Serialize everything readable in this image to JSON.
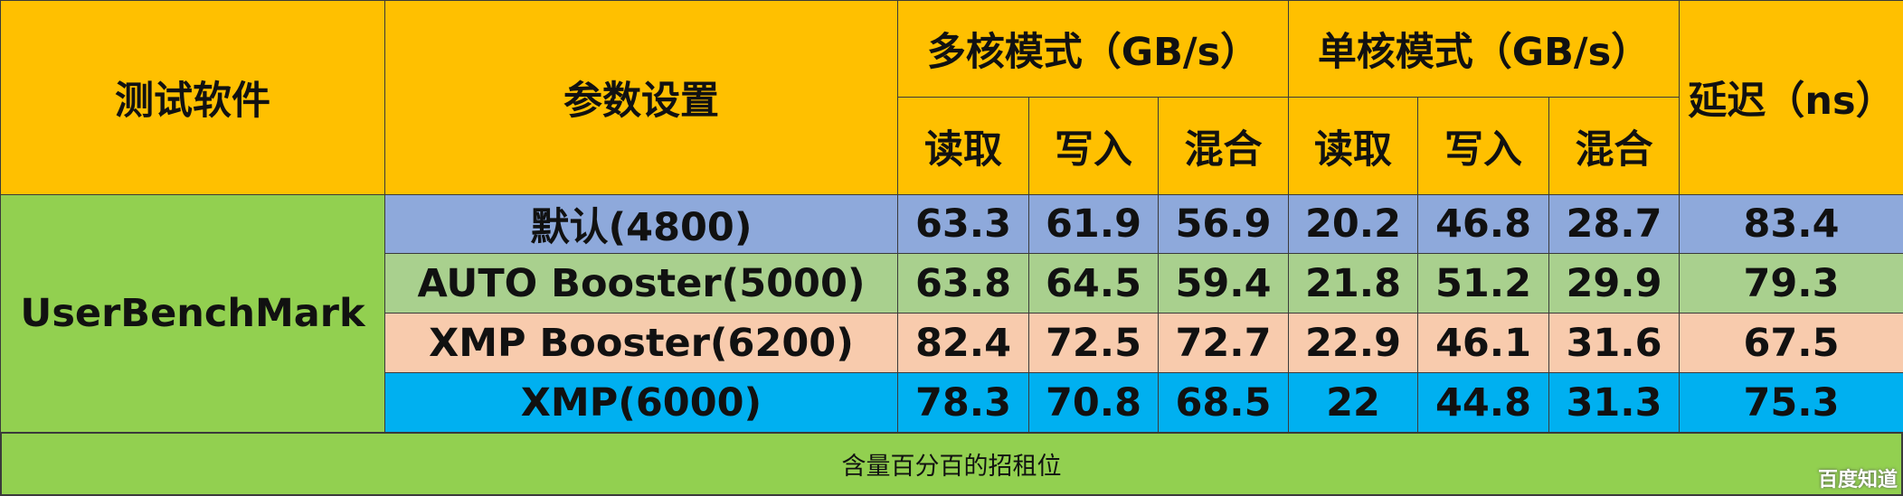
{
  "table": {
    "header": {
      "software": "测试软件",
      "settings": "参数设置",
      "groups": [
        "多核模式（GB/s）",
        "单核模式（GB/s）"
      ],
      "latency": "延迟（ns）",
      "sub": [
        "读取",
        "写入",
        "混合",
        "读取",
        "写入",
        "混合"
      ]
    },
    "software": "UserBenchMark",
    "rows": [
      {
        "setting": "默认(4800)",
        "values": [
          63.3,
          61.9,
          56.9,
          20.2,
          46.8,
          28.7,
          83.4
        ]
      },
      {
        "setting": "AUTO Booster(5000)",
        "values": [
          63.8,
          64.5,
          59.4,
          21.8,
          51.2,
          29.9,
          79.3
        ]
      },
      {
        "setting": "XMP Booster(6200)",
        "values": [
          82.4,
          72.5,
          72.7,
          22.9,
          46.1,
          31.6,
          67.5
        ]
      },
      {
        "setting": "XMP(6000)",
        "values": [
          78.3,
          70.8,
          68.5,
          22,
          44.8,
          31.3,
          75.3
        ]
      }
    ]
  },
  "footer": "含量百分百的招租位",
  "watermark": "百度知道"
}
